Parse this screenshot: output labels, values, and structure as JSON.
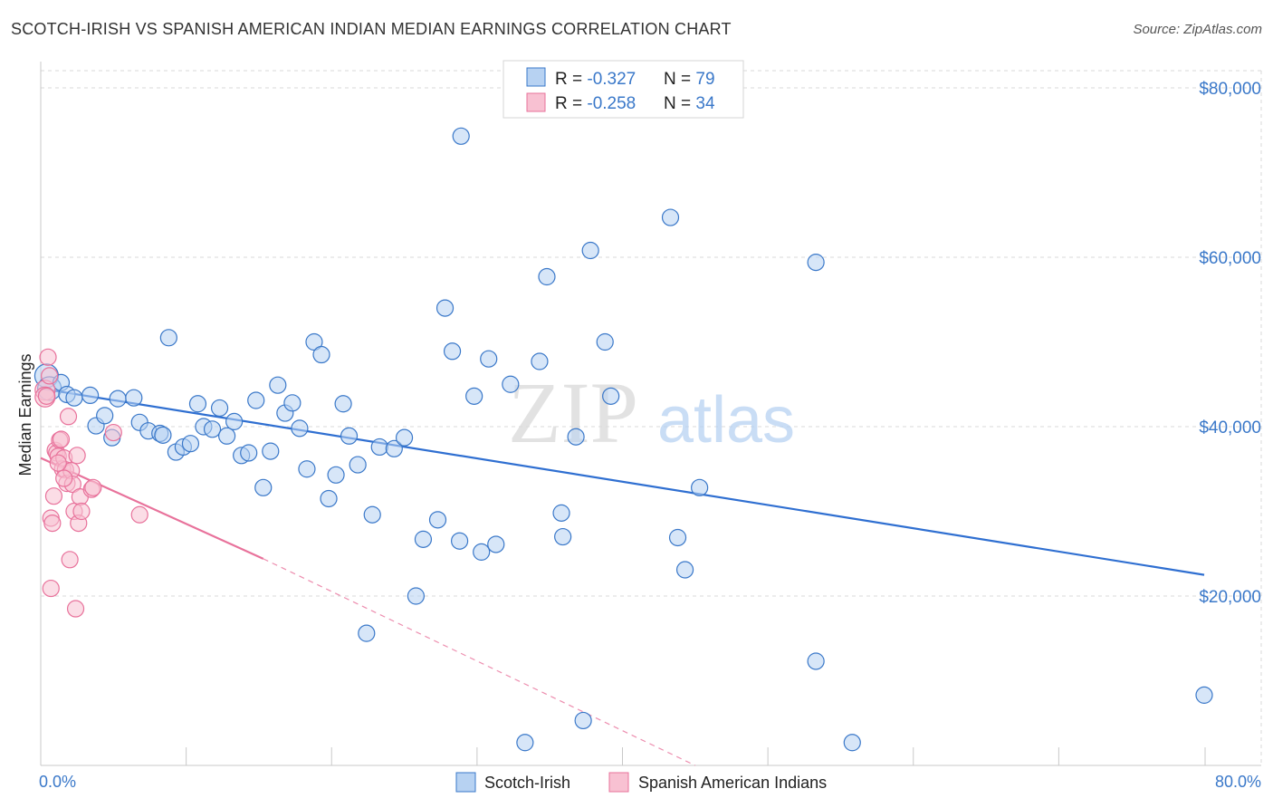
{
  "title": "SCOTCH-IRISH VS SPANISH AMERICAN INDIAN MEDIAN EARNINGS CORRELATION CHART",
  "source": "Source: ZipAtlas.com",
  "watermark": {
    "zip": "ZIP",
    "atlas": "atlas"
  },
  "colors": {
    "blue": "#3a78c9",
    "blue_fill": "#b7d2f2",
    "blue_line": "#2f6fd1",
    "pink": "#e8729b",
    "pink_fill": "#f8c1d2",
    "grid": "#d9d9d9"
  },
  "legend": {
    "rows": [
      {
        "r_label": "R = ",
        "r_value": "-0.327",
        "n_label": "N = ",
        "n_value": "79",
        "color": "blue"
      },
      {
        "r_label": "R = ",
        "r_value": "-0.258",
        "n_label": "N = ",
        "n_value": "34",
        "color": "pink"
      }
    ]
  },
  "bottom_legend": [
    "Scotch-Irish",
    "Spanish American Indians"
  ],
  "chart_data": {
    "type": "scatter",
    "xlabel": "",
    "ylabel": "Median Earnings",
    "xlim": [
      0,
      80
    ],
    "ylim": [
      0,
      80000
    ],
    "x_tick_labels": [
      "0.0%",
      "80.0%"
    ],
    "y_ticks": [
      20000,
      40000,
      60000,
      80000
    ],
    "y_tick_labels": [
      "$20,000",
      "$40,000",
      "$60,000",
      "$80,000"
    ],
    "grid": true,
    "legend_position": "top-center",
    "series": [
      {
        "name": "Scotch-Irish",
        "color": "blue",
        "r": -0.327,
        "n": 79,
        "trend": {
          "x": [
            0,
            80
          ],
          "y": [
            44500,
            22500
          ],
          "dashed_to": null
        },
        "points": [
          [
            0.4,
            46000,
            3
          ],
          [
            0.6,
            44500,
            3
          ],
          [
            1.4,
            45200,
            1
          ],
          [
            1.8,
            43800,
            1
          ],
          [
            2.3,
            43400,
            1
          ],
          [
            3.4,
            43700,
            1
          ],
          [
            3.8,
            40100,
            1
          ],
          [
            4.4,
            41300,
            1
          ],
          [
            4.9,
            38700,
            1
          ],
          [
            5.3,
            43300,
            1
          ],
          [
            6.4,
            43400,
            1
          ],
          [
            6.8,
            40500,
            1
          ],
          [
            7.4,
            39500,
            1
          ],
          [
            8.2,
            39200,
            1
          ],
          [
            8.4,
            39000,
            1
          ],
          [
            8.8,
            50500,
            1
          ],
          [
            9.3,
            37000,
            1
          ],
          [
            9.8,
            37600,
            1
          ],
          [
            10.3,
            38000,
            1
          ],
          [
            10.8,
            42700,
            1
          ],
          [
            11.2,
            40000,
            1
          ],
          [
            11.8,
            39700,
            1
          ],
          [
            12.3,
            42200,
            1
          ],
          [
            12.8,
            38900,
            1
          ],
          [
            13.3,
            40600,
            1
          ],
          [
            13.8,
            36600,
            1
          ],
          [
            14.3,
            36900,
            1
          ],
          [
            14.8,
            43100,
            1
          ],
          [
            15.3,
            32800,
            1
          ],
          [
            15.8,
            37100,
            1
          ],
          [
            16.3,
            44900,
            1
          ],
          [
            16.8,
            41600,
            1
          ],
          [
            17.3,
            42800,
            1
          ],
          [
            17.8,
            39800,
            1
          ],
          [
            18.3,
            35000,
            1
          ],
          [
            18.8,
            50000,
            1
          ],
          [
            19.3,
            48500,
            1
          ],
          [
            19.8,
            31500,
            1
          ],
          [
            20.3,
            34300,
            1
          ],
          [
            20.8,
            42700,
            1
          ],
          [
            21.2,
            38900,
            1
          ],
          [
            21.8,
            35500,
            1
          ],
          [
            22.8,
            29600,
            1
          ],
          [
            23.3,
            37600,
            1
          ],
          [
            24.3,
            37400,
            1
          ],
          [
            25.0,
            38700,
            1
          ],
          [
            25.8,
            20000,
            1
          ],
          [
            26.3,
            26700,
            1
          ],
          [
            27.3,
            29000,
            1
          ],
          [
            27.8,
            54000,
            1
          ],
          [
            28.3,
            48900,
            1
          ],
          [
            28.8,
            26500,
            1
          ],
          [
            28.9,
            74300,
            1
          ],
          [
            29.8,
            43600,
            1
          ],
          [
            30.3,
            25200,
            1
          ],
          [
            30.8,
            48000,
            1
          ],
          [
            31.3,
            26100,
            1
          ],
          [
            32.3,
            45000,
            1
          ],
          [
            33.3,
            2700,
            1
          ],
          [
            34.3,
            47700,
            1
          ],
          [
            34.8,
            57700,
            1
          ],
          [
            35.8,
            29800,
            1
          ],
          [
            35.9,
            27000,
            1
          ],
          [
            36.8,
            38800,
            1
          ],
          [
            37.3,
            5300,
            1
          ],
          [
            37.8,
            60800,
            1
          ],
          [
            38.8,
            50000,
            1
          ],
          [
            39.2,
            43600,
            1
          ],
          [
            43.3,
            64700,
            1
          ],
          [
            43.8,
            26900,
            1
          ],
          [
            44.3,
            23100,
            1
          ],
          [
            45.3,
            32800,
            1
          ],
          [
            53.3,
            59400,
            1
          ],
          [
            53.3,
            12300,
            1
          ],
          [
            55.8,
            2700,
            1
          ],
          [
            80.0,
            8300,
            1
          ],
          [
            22.4,
            15600,
            1
          ]
        ]
      },
      {
        "name": "Spanish American Indians",
        "color": "pink",
        "r": -0.258,
        "n": 34,
        "trend": {
          "x": [
            0,
            15.3
          ],
          "y": [
            36300,
            24400
          ],
          "dashed_to": [
            45,
            0
          ]
        },
        "points": [
          [
            0.3,
            44300,
            2
          ],
          [
            0.3,
            43500,
            2
          ],
          [
            0.5,
            48200,
            1
          ],
          [
            0.6,
            46000,
            1
          ],
          [
            0.7,
            29200,
            1
          ],
          [
            0.7,
            20900,
            1
          ],
          [
            0.8,
            28600,
            1
          ],
          [
            0.9,
            31800,
            1
          ],
          [
            1.0,
            37200,
            1
          ],
          [
            1.1,
            36900,
            1
          ],
          [
            1.2,
            36500,
            1
          ],
          [
            1.3,
            38400,
            1
          ],
          [
            1.4,
            38500,
            1
          ],
          [
            1.5,
            35000,
            1
          ],
          [
            1.6,
            36300,
            1
          ],
          [
            1.7,
            34900,
            1
          ],
          [
            1.8,
            33300,
            1
          ],
          [
            1.9,
            41200,
            1
          ],
          [
            2.0,
            24300,
            1
          ],
          [
            2.1,
            34800,
            1
          ],
          [
            2.2,
            33200,
            1
          ],
          [
            2.3,
            30000,
            1
          ],
          [
            2.4,
            18500,
            1
          ],
          [
            2.5,
            36600,
            1
          ],
          [
            2.6,
            28600,
            1
          ],
          [
            2.7,
            31700,
            1
          ],
          [
            2.8,
            30000,
            1
          ],
          [
            3.5,
            32600,
            1
          ],
          [
            3.6,
            32800,
            1
          ],
          [
            5.0,
            39300,
            1
          ],
          [
            6.8,
            29600,
            1
          ],
          [
            0.4,
            43600,
            1
          ],
          [
            1.2,
            35700,
            1
          ],
          [
            1.6,
            33900,
            1
          ]
        ]
      }
    ]
  }
}
